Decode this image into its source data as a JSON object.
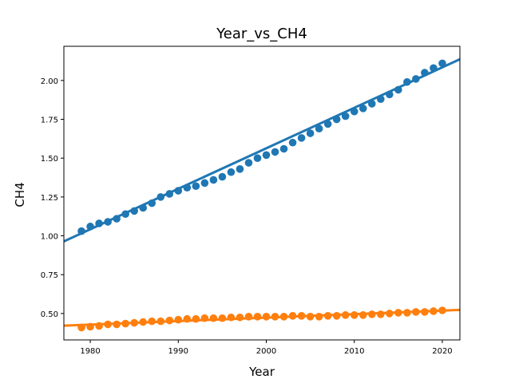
{
  "chart_data": {
    "type": "scatter",
    "title": "Year_vs_CH4",
    "xlabel": "Year",
    "ylabel": "CH4",
    "xlim": [
      1977,
      2022
    ],
    "ylim": [
      0.33,
      2.22
    ],
    "xticks": [
      1980,
      1990,
      2000,
      2010,
      2020
    ],
    "xtick_labels": [
      "1980",
      "1990",
      "2000",
      "2010",
      "2020"
    ],
    "yticks": [
      0.5,
      0.75,
      1.0,
      1.25,
      1.5,
      1.75,
      2.0
    ],
    "ytick_labels": [
      "0.50",
      "0.75",
      "1.00",
      "1.25",
      "1.50",
      "1.75",
      "2.00"
    ],
    "grid": false,
    "x": [
      1979,
      1980,
      1981,
      1982,
      1983,
      1984,
      1985,
      1986,
      1987,
      1988,
      1989,
      1990,
      1991,
      1992,
      1993,
      1994,
      1995,
      1996,
      1997,
      1998,
      1999,
      2000,
      2001,
      2002,
      2003,
      2004,
      2005,
      2006,
      2007,
      2008,
      2009,
      2010,
      2011,
      2012,
      2013,
      2014,
      2015,
      2016,
      2017,
      2018,
      2019,
      2020
    ],
    "series": [
      {
        "color": "#1f77b4",
        "values": [
          1.03,
          1.06,
          1.08,
          1.09,
          1.11,
          1.14,
          1.16,
          1.18,
          1.21,
          1.25,
          1.27,
          1.29,
          1.31,
          1.32,
          1.34,
          1.36,
          1.38,
          1.41,
          1.43,
          1.47,
          1.5,
          1.52,
          1.54,
          1.56,
          1.6,
          1.63,
          1.66,
          1.69,
          1.72,
          1.75,
          1.77,
          1.8,
          1.82,
          1.85,
          1.88,
          1.91,
          1.94,
          1.99,
          2.01,
          2.05,
          2.08,
          2.11
        ],
        "fit": {
          "slope": 0.02605,
          "intercept": -50.5366
        }
      },
      {
        "color": "#ff7f0e",
        "values": [
          0.41,
          0.415,
          0.42,
          0.43,
          0.43,
          0.435,
          0.44,
          0.445,
          0.45,
          0.45,
          0.455,
          0.46,
          0.465,
          0.465,
          0.47,
          0.47,
          0.47,
          0.475,
          0.475,
          0.48,
          0.48,
          0.48,
          0.48,
          0.48,
          0.485,
          0.485,
          0.48,
          0.48,
          0.485,
          0.485,
          0.49,
          0.49,
          0.49,
          0.495,
          0.495,
          0.5,
          0.505,
          0.505,
          0.51,
          0.51,
          0.515,
          0.52
        ],
        "fit": {
          "slope": 0.00225,
          "intercept": -4.0265
        }
      }
    ]
  }
}
